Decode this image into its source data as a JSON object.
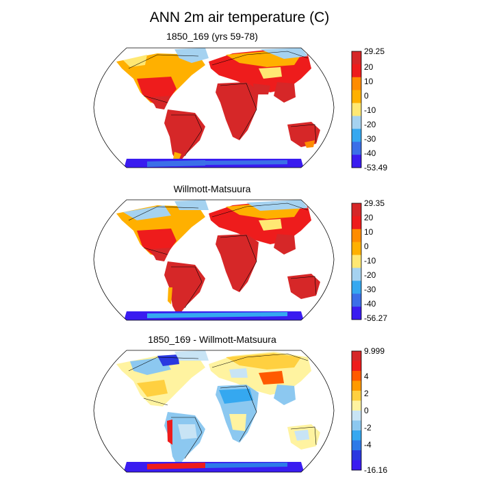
{
  "figure": {
    "title": "ANN 2m air temperature (C)"
  },
  "panels": [
    {
      "title": "1850_169 (yrs 59-78)",
      "colorbar": {
        "labels": [
          "29.25",
          "20",
          "10",
          "0",
          "-10",
          "-20",
          "-30",
          "-40",
          "-53.49"
        ],
        "colors": [
          "#d62728",
          "#ee1c1c",
          "#ff8c00",
          "#ffb000",
          "#ffe873",
          "#a5d2f0",
          "#35a8f0",
          "#3b6fe8",
          "#3a1cf0"
        ]
      }
    },
    {
      "title": "Willmott-Matsuura",
      "colorbar": {
        "labels": [
          "29.35",
          "20",
          "10",
          "0",
          "-10",
          "-20",
          "-30",
          "-40",
          "-56.27"
        ],
        "colors": [
          "#d62728",
          "#ee1c1c",
          "#ff8c00",
          "#ffb000",
          "#ffe873",
          "#a5d2f0",
          "#35a8f0",
          "#3b6fe8",
          "#3a1cf0"
        ]
      }
    },
    {
      "title": "1850_169 - Willmott-Matsuura",
      "colorbar": {
        "labels": [
          "9.999",
          "4",
          "2",
          "0",
          "-2",
          "-4",
          "-16.16"
        ],
        "colors": [
          "#d62728",
          "#ee1c1c",
          "#ff5a00",
          "#ff9a00",
          "#ffd040",
          "#fff3a0",
          "#c8e4f5",
          "#8cc8f0",
          "#35a8f0",
          "#2d7ae8",
          "#2a38e0",
          "#3a1cf0"
        ]
      }
    }
  ]
}
